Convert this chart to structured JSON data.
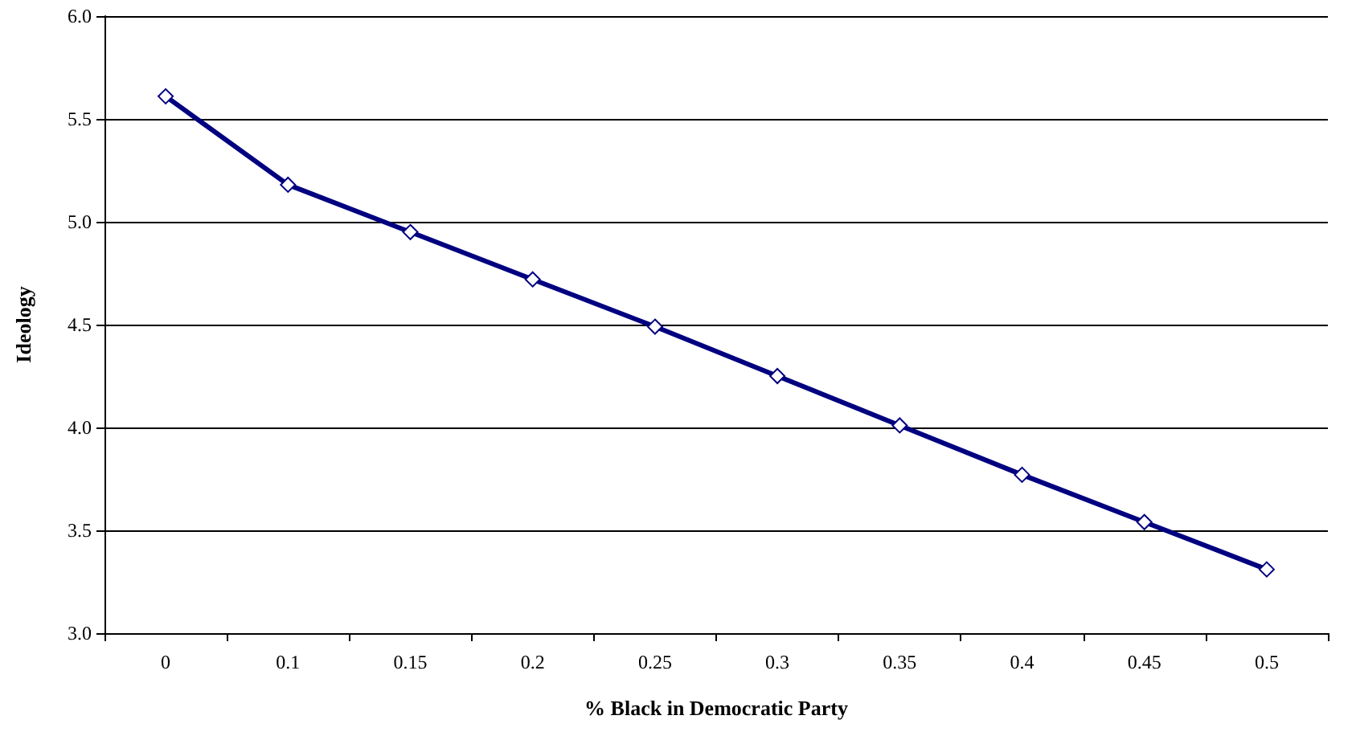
{
  "chart_data": {
    "type": "line",
    "xlabel": "% Black in Democratic Party",
    "ylabel": "Ideology",
    "categories": [
      "0",
      "0.1",
      "0.15",
      "0.2",
      "0.25",
      "0.3",
      "0.35",
      "0.4",
      "0.45",
      "0.5"
    ],
    "series": [
      {
        "color": "#000080",
        "values": [
          5.61,
          5.18,
          4.95,
          4.72,
          4.49,
          4.25,
          4.01,
          3.77,
          3.54,
          3.31
        ]
      }
    ],
    "ylim": [
      3,
      6
    ],
    "yticks": [
      {
        "value": 3,
        "label": "3.0"
      },
      {
        "value": 3.5,
        "label": "3.5"
      },
      {
        "value": 4,
        "label": "4.0"
      },
      {
        "value": 4.5,
        "label": "4.5"
      },
      {
        "value": 5,
        "label": "5.0"
      },
      {
        "value": 5.5,
        "label": "5.5"
      },
      {
        "value": 6,
        "label": "6.0"
      }
    ],
    "grid": "y",
    "marker": "diamond",
    "line_style": "solid"
  }
}
